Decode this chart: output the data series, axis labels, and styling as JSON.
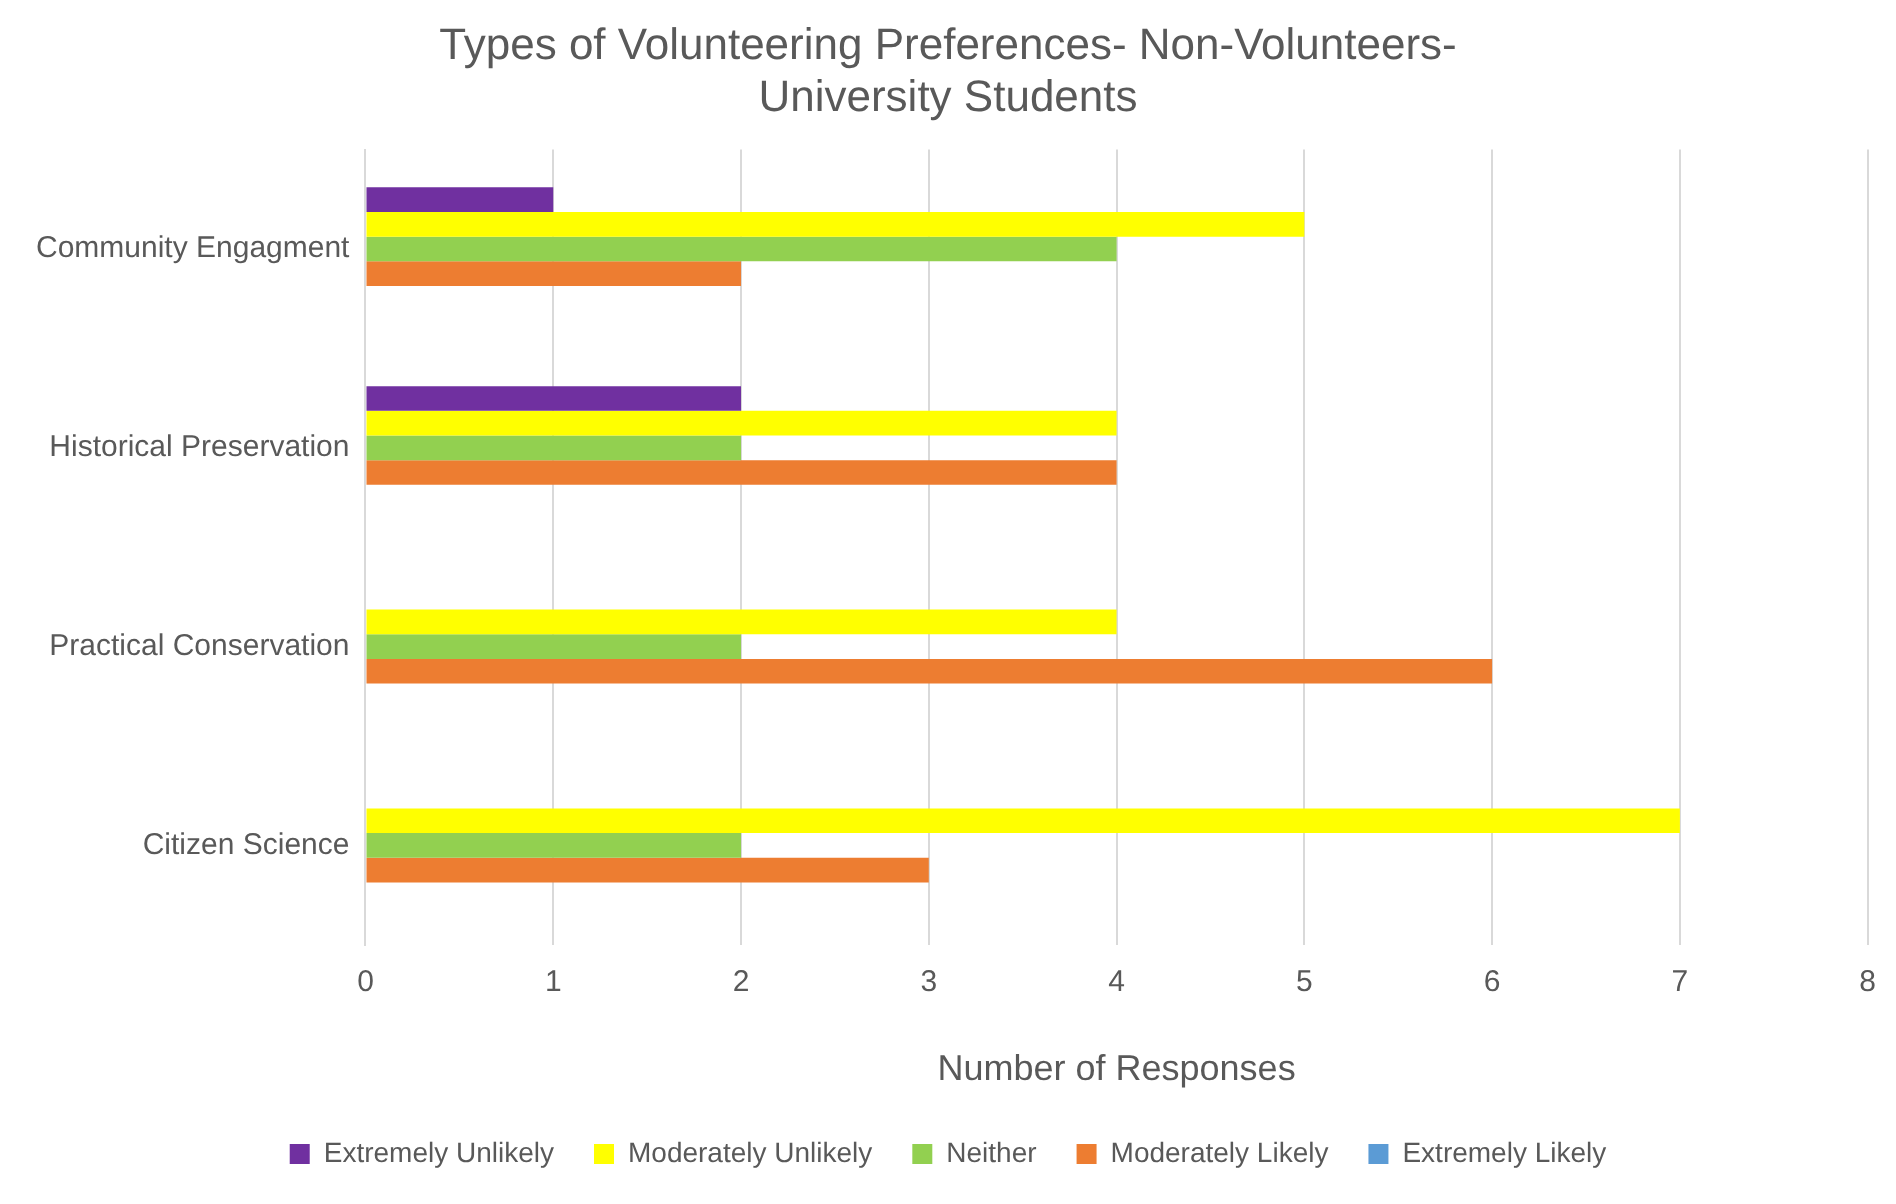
{
  "chart_data": {
    "type": "bar",
    "orientation": "horizontal",
    "title": "Types of Volunteering Preferences- Non-Volunteers- University Students",
    "xlabel": "Number of Responses",
    "categories": [
      "Community Engagment",
      "Historical Preservation",
      "Practical Conservation",
      "Citizen Science"
    ],
    "series": [
      {
        "name": "Extremely Unlikely",
        "color": "#7030a0",
        "values": [
          1,
          2,
          0,
          0
        ]
      },
      {
        "name": "Moderately Unlikely",
        "color": "#ffff00",
        "values": [
          5,
          4,
          4,
          7
        ]
      },
      {
        "name": "Neither",
        "color": "#92d050",
        "values": [
          4,
          2,
          2,
          2
        ]
      },
      {
        "name": "Moderately Likely",
        "color": "#ed7d31",
        "values": [
          2,
          4,
          6,
          3
        ]
      },
      {
        "name": "Extremely Likely",
        "color": "#5b9bd5",
        "values": [
          0,
          0,
          0,
          0
        ]
      }
    ],
    "xlim": [
      0,
      8
    ],
    "xticks": [
      0,
      1,
      2,
      3,
      4,
      5,
      6,
      7,
      8
    ],
    "grid": "x",
    "legend": "bottom"
  }
}
